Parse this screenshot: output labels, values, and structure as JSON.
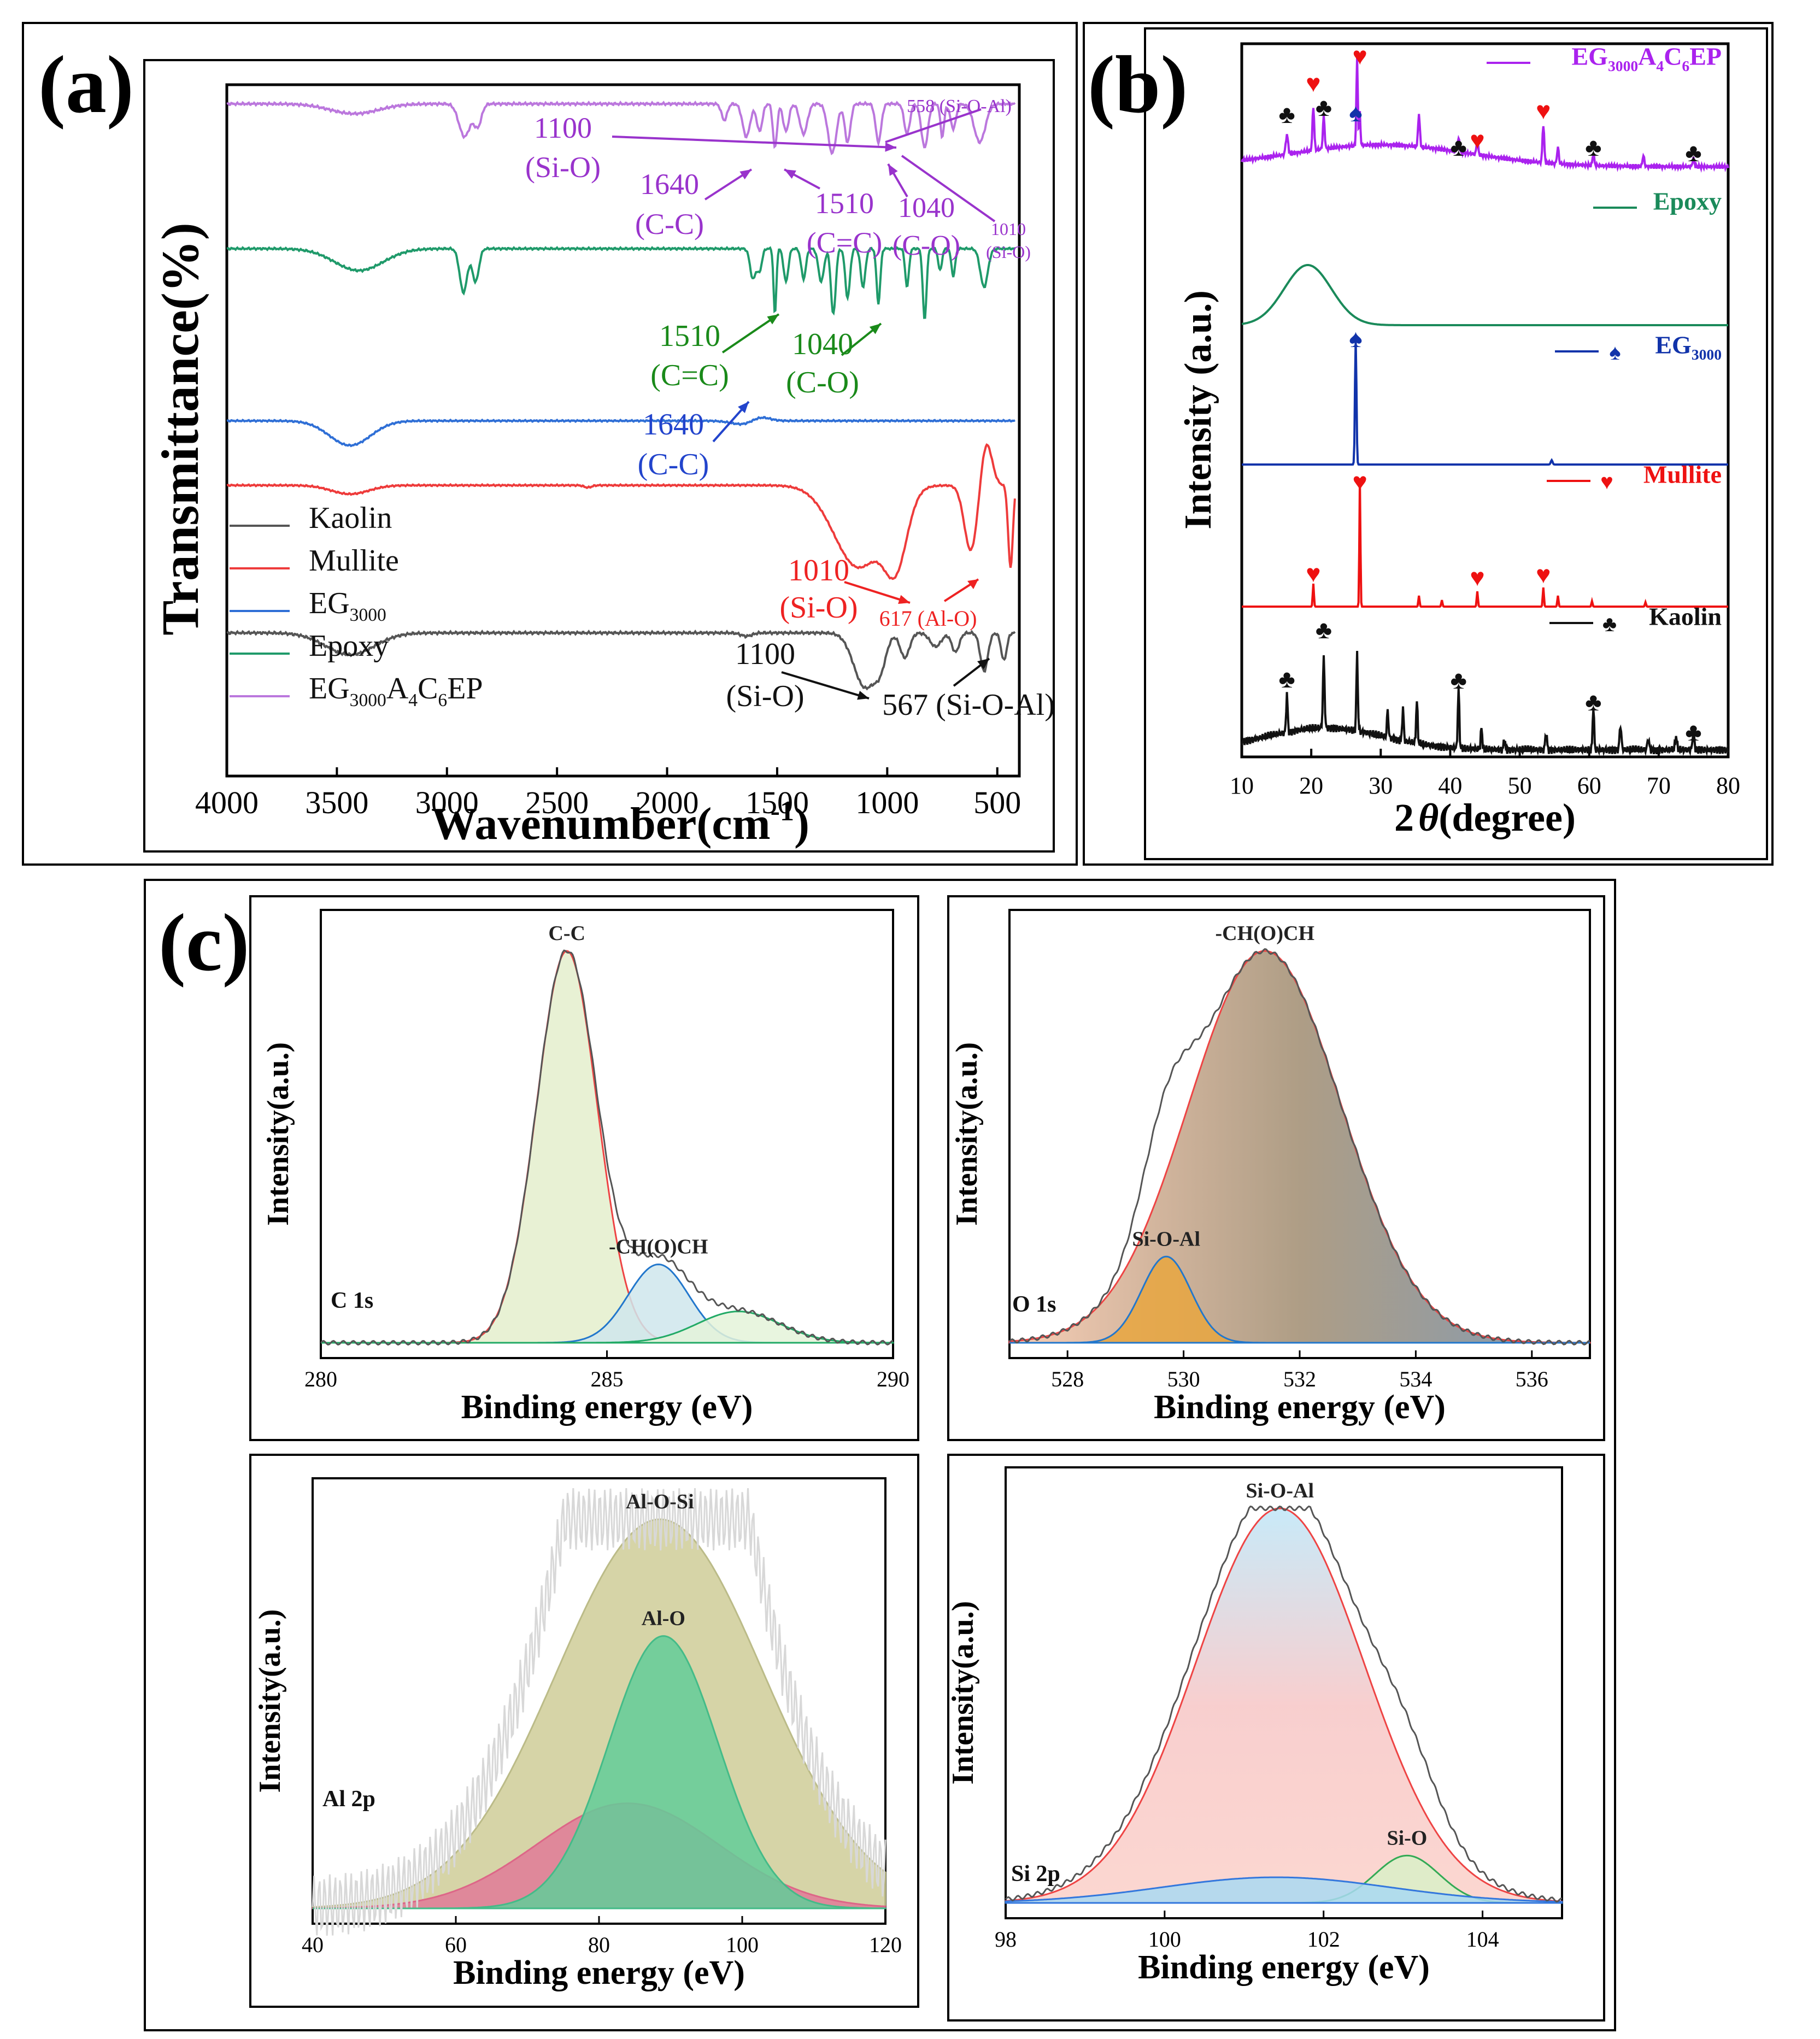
{
  "figure_title": "",
  "chart_data": [
    {
      "panel": "(a)",
      "type": "line",
      "title": "",
      "xlabel": "Wavenumber(cm",
      "xlabel_sup": "-1",
      "xlabel_end": ")",
      "ylabel": "Transmittance(%)",
      "xlim": [
        4000,
        400
      ],
      "xticks": [
        4000,
        3500,
        3000,
        2500,
        2000,
        1500,
        1000,
        500
      ],
      "legend": [
        {
          "name": "Kaolin",
          "color": "#555555"
        },
        {
          "name": "Mullite",
          "color": "#ee3b3b"
        },
        {
          "name": "EG",
          "sub": "3000",
          "color": "#2f6fd6"
        },
        {
          "name": "Epoxy",
          "color": "#1f9a6a"
        },
        {
          "name": "EG",
          "sub": "3000",
          "name2": "A",
          "sub2": "4",
          "name3": "C",
          "sub3": "6",
          "name4": "EP",
          "color": "#bb77dd"
        }
      ],
      "series_color": {
        "kaolin": "#555555",
        "mullite": "#ee3b3b",
        "eg3000": "#2f6fd6",
        "epoxy": "#1f9a6a",
        "composite": "#bb77dd"
      },
      "annotations": [
        {
          "label": "1100",
          "sub": "(Si-O)",
          "color": "#9933cc",
          "series": "composite",
          "x": 1100
        },
        {
          "label": "558 (Si-O-Al)",
          "color": "#9933cc",
          "series": "composite",
          "x": 558
        },
        {
          "label": "1640",
          "sub": "(C-C)",
          "color": "#9933cc",
          "series": "composite",
          "x": 1640
        },
        {
          "label": "1510",
          "sub": "(C=C)",
          "color": "#9933cc",
          "series": "composite",
          "x": 1510
        },
        {
          "label": "1040",
          "sub": "(C-O)",
          "color": "#9933cc",
          "series": "composite",
          "x": 1040
        },
        {
          "label": "1010",
          "sub": "(Si-O)",
          "color": "#9933cc",
          "series": "composite",
          "x": 1010
        },
        {
          "label": "1510",
          "sub": "(C=C)",
          "color": "#1a8a1a",
          "series": "epoxy",
          "x": 1510
        },
        {
          "label": "1040",
          "sub": "(C-O)",
          "color": "#1a8a1a",
          "series": "epoxy",
          "x": 1040
        },
        {
          "label": "1640",
          "sub": "(C-C)",
          "color": "#2244cc",
          "series": "eg3000",
          "x": 1640
        },
        {
          "label": "1010",
          "sub": "(Si-O)",
          "color": "#ee2222",
          "series": "mullite",
          "x": 1010
        },
        {
          "label": "617 (Al-O)",
          "color": "#ee2222",
          "series": "mullite",
          "x": 617
        },
        {
          "label": "1100",
          "sub": "(Si-O)",
          "color": "#111111",
          "series": "kaolin",
          "x": 1100
        },
        {
          "label": "567 (Si-O-Al)",
          "color": "#111111",
          "series": "kaolin",
          "x": 567
        }
      ]
    },
    {
      "panel": "(b)",
      "type": "line",
      "title": "",
      "xlabel": "2θ(degree)",
      "xlabel_theta": "θ",
      "ylabel": "Intensity (a.u.)",
      "xlim": [
        10,
        80
      ],
      "xticks": [
        10,
        20,
        30,
        40,
        50,
        60,
        70,
        80
      ],
      "legend": [
        {
          "name": "EG",
          "sub": "3000",
          "name2": "A",
          "sub2": "4",
          "name3": "C",
          "sub3": "6",
          "name4": "EP",
          "color": "#aa22ee"
        },
        {
          "name": "Epoxy",
          "color": "#1a8a5a"
        },
        {
          "name": "EG",
          "sub": "3000",
          "color": "#1133aa",
          "marker": "♠"
        },
        {
          "name": "Mullite",
          "color": "#ee1111",
          "marker": "♥"
        },
        {
          "name": "Kaolin",
          "color": "#111111",
          "marker": "♣"
        }
      ],
      "markers": {
        "kaolin": {
          "symbol": "♣",
          "color": "#111111",
          "peaks_2theta": [
            16.5,
            21.8,
            41.2,
            60.6,
            75.0
          ]
        },
        "mullite": {
          "symbol": "♥",
          "color": "#ee1111",
          "peaks_2theta": [
            20.3,
            27.0,
            43.9,
            53.4
          ]
        },
        "eg3000": {
          "symbol": "♠",
          "color": "#1133aa",
          "peaks_2theta": [
            26.4
          ]
        },
        "composite_club": {
          "symbol": "♣",
          "color": "#111111",
          "peaks_2theta": [
            16.5,
            21.8,
            41.2,
            60.6,
            75.0
          ]
        },
        "composite_heart": {
          "symbol": "♥",
          "color": "#ee1111",
          "peaks_2theta": [
            20.3,
            27.0,
            43.9,
            53.4
          ]
        },
        "composite_spade": {
          "symbol": "♠",
          "color": "#1133aa",
          "peaks_2theta": [
            26.4
          ]
        }
      }
    },
    {
      "panel": "(c)",
      "type": "area",
      "subplots": [
        {
          "name": "C 1s",
          "xlabel": "Binding energy (eV)",
          "ylabel": "Intensity(a.u.)",
          "xlim": [
            280,
            290
          ],
          "xticks": [
            280,
            285,
            290
          ],
          "peaks": [
            {
              "label": "C-C",
              "center": 284.3,
              "fwhm": 1.25,
              "height": 1.0
            },
            {
              "label": "-CH(O)CH",
              "center": 285.9,
              "fwhm": 1.25,
              "height": 0.2
            },
            {
              "label": "",
              "center": 287.3,
              "fwhm": 1.7,
              "height": 0.08
            }
          ]
        },
        {
          "name": "O 1s",
          "xlabel": "Binding energy (eV)",
          "ylabel": "Intensity(a.u.)",
          "xlim": [
            527,
            537
          ],
          "xticks": [
            528,
            530,
            532,
            534,
            536
          ],
          "peaks": [
            {
              "label": "-CH(O)CH",
              "center": 531.4,
              "fwhm": 3.1,
              "height": 1.0
            },
            {
              "label": "Si-O-Al",
              "center": 529.7,
              "fwhm": 1.0,
              "height": 0.22
            }
          ]
        },
        {
          "name": "Al 2p",
          "xlabel": "Binding energy (eV)",
          "ylabel": "Intensity(a.u.)",
          "xlim": [
            40,
            120
          ],
          "xticks": [
            40,
            60,
            80,
            100,
            120
          ],
          "peaks": [
            {
              "label": "Al-O-Si",
              "center": 88.5,
              "fwhm": 34.0,
              "height": 1.0
            },
            {
              "label": "Al-O",
              "center": 89.0,
              "fwhm": 18.0,
              "height": 0.7
            },
            {
              "label": "",
              "center": 84.0,
              "fwhm": 30.0,
              "height": 0.27
            }
          ]
        },
        {
          "name": "Si 2p",
          "xlabel": "Binding energy (eV)",
          "ylabel": "Intensity(a.u.)",
          "xlim": [
            98,
            105
          ],
          "xticks": [
            98,
            100,
            102,
            104
          ],
          "peaks": [
            {
              "label": "Si-O-Al",
              "center": 101.45,
              "fwhm": 2.5,
              "height": 1.0
            },
            {
              "label": "Si-O",
              "center": 103.05,
              "fwhm": 0.95,
              "height": 0.12
            },
            {
              "label": "",
              "center": 101.4,
              "fwhm": 3.4,
              "height": 0.065
            }
          ]
        }
      ]
    }
  ]
}
